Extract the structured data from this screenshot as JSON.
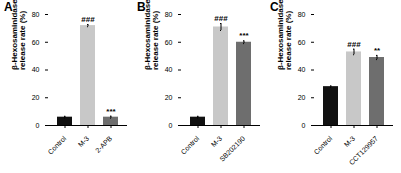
{
  "chart_data": [
    {
      "type": "bar",
      "title": "A",
      "y_label": "β-Hexosaminidase release rate (%)",
      "categories": [
        "Control",
        "M-3",
        "2-APB"
      ],
      "values": [
        6,
        72,
        6
      ],
      "errors": [
        0.6,
        0.8,
        0.7
      ],
      "colors": [
        "#111111",
        "#c8c8c8",
        "#6e6e6e"
      ],
      "annotations": [
        {
          "category": "M-3",
          "text": "###"
        },
        {
          "category": "2-APB",
          "text": "***"
        }
      ],
      "ylim": [
        0,
        80
      ],
      "yticks": [
        0,
        20,
        40,
        60,
        80
      ]
    },
    {
      "type": "bar",
      "title": "B",
      "y_label": "β-Hexosaminidase release rate (%)",
      "categories": [
        "Control",
        "M-3",
        "SB202190"
      ],
      "values": [
        6,
        71,
        60
      ],
      "errors": [
        0.6,
        2.5,
        1.0
      ],
      "colors": [
        "#111111",
        "#c8c8c8",
        "#6e6e6e"
      ],
      "annotations": [
        {
          "category": "M-3",
          "text": "###"
        },
        {
          "category": "SB202190",
          "text": "***"
        }
      ],
      "ylim": [
        0,
        80
      ],
      "yticks": [
        0,
        20,
        40,
        60,
        80
      ]
    },
    {
      "type": "bar",
      "title": "C",
      "y_label": "β-Hexosaminidase release rate (%)",
      "categories": [
        "Control",
        "M-3",
        "CCT129957"
      ],
      "values": [
        28,
        53,
        49
      ],
      "errors": [
        0.5,
        2.0,
        1.5
      ],
      "colors": [
        "#111111",
        "#c8c8c8",
        "#6e6e6e"
      ],
      "annotations": [
        {
          "category": "M-3",
          "text": "###"
        },
        {
          "category": "CCT129957",
          "text": "**"
        }
      ],
      "ylim": [
        0,
        80
      ],
      "yticks": [
        0,
        20,
        40,
        60,
        80
      ]
    }
  ]
}
